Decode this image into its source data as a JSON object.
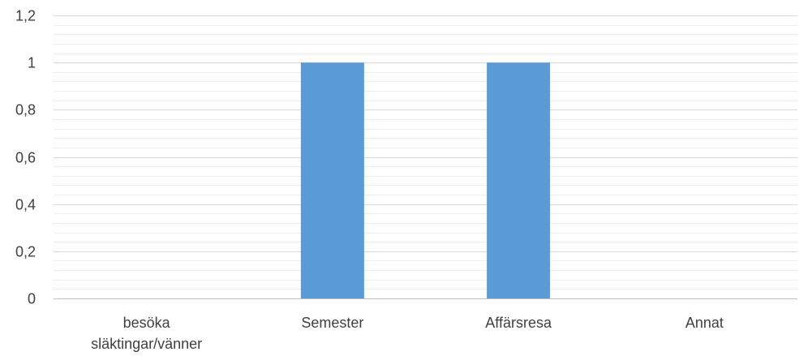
{
  "chart_data": {
    "type": "bar",
    "title": "",
    "xlabel": "",
    "ylabel": "",
    "categories": [
      "besöka släktingar/vänner",
      "Semester",
      "Affärsresa",
      "Annat"
    ],
    "category_label_lines": [
      [
        "besöka",
        "släktingar/vänner"
      ],
      [
        "Semester"
      ],
      [
        "Affärsresa"
      ],
      [
        "Annat"
      ]
    ],
    "values": [
      0,
      1,
      1,
      0
    ],
    "ylim": [
      0,
      1.2
    ],
    "y_ticks": [
      0,
      0.2,
      0.4,
      0.6,
      0.8,
      1,
      1.2
    ],
    "y_tick_labels": [
      "0",
      "0,2",
      "0,4",
      "0,6",
      "0,8",
      "1",
      "1,2"
    ],
    "grid": true,
    "minor_grid": true,
    "legend": "none",
    "bar_color": "#5B9BD5",
    "grid_color": "#D9D9D9",
    "minor_grid_color": "#EEEEEE",
    "text_color": "#404040"
  }
}
